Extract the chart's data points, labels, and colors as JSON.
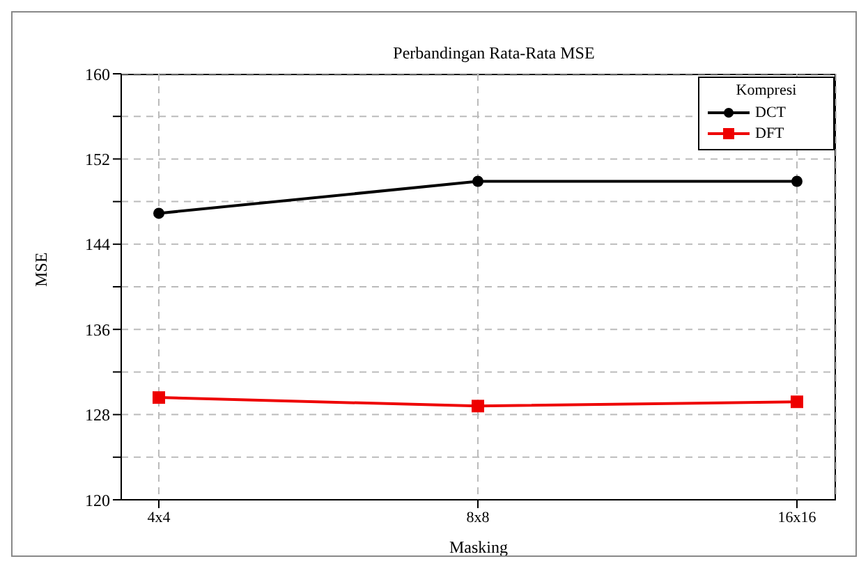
{
  "chart_data": {
    "type": "line",
    "title": "Perbandingan Rata-Rata MSE",
    "xlabel": "Masking",
    "ylabel": "MSE",
    "legend_title": "Kompresi",
    "categories": [
      "4x4",
      "8x8",
      "16x16"
    ],
    "series": [
      {
        "name": "DCT",
        "color": "#000000",
        "values": [
          146.9,
          149.9,
          149.9
        ],
        "marker": "circle"
      },
      {
        "name": "DFT",
        "color": "#ee0000",
        "values": [
          129.6,
          128.8,
          129.2
        ],
        "marker": "square"
      }
    ],
    "ylim": [
      120,
      160
    ],
    "yticks": [
      120,
      {
        "value": 124,
        "label": null
      },
      128,
      {
        "value": 132,
        "label": null
      },
      136,
      {
        "value": 140,
        "label": null
      },
      144,
      {
        "value": 148,
        "label": null
      },
      152,
      {
        "value": 156,
        "label": null
      },
      160
    ],
    "grid": true,
    "legend": "top right",
    "line_style": "solid"
  }
}
